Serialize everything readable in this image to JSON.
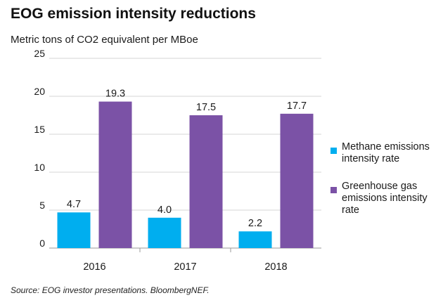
{
  "chart_data": {
    "type": "bar",
    "title": "EOG emission intensity reductions",
    "subtitle": "Metric tons of CO2 equivalent per MBoe",
    "categories": [
      "2016",
      "2017",
      "2018"
    ],
    "series": [
      {
        "name": "Methane emissions intensity rate",
        "values": [
          4.7,
          4.0,
          2.2
        ],
        "labels": [
          "4.7",
          "4.0",
          "2.2"
        ],
        "color": "#00aeef"
      },
      {
        "name": "Greenhouse gas emissions intensity rate",
        "values": [
          19.3,
          17.5,
          17.7
        ],
        "labels": [
          "19.3",
          "17.5",
          "17.7"
        ],
        "color": "#7b52a6"
      }
    ],
    "ylim": [
      0,
      25
    ],
    "yticks": [
      "0",
      "5",
      "10",
      "15",
      "20",
      "25"
    ],
    "grid": true,
    "legend": "right"
  },
  "source": "Source: EOG investor presentations. BloombergNEF."
}
